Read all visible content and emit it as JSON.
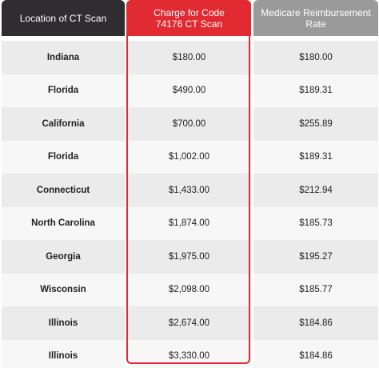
{
  "table": {
    "headers": {
      "location": "Location of CT Scan",
      "charge": "Charge for Code 74176 CT Scan",
      "medicare": "Medicare Reimbursement Rate"
    },
    "rows": [
      {
        "location": "Indiana",
        "charge": "$180.00",
        "medicare": "$180.00"
      },
      {
        "location": "Florida",
        "charge": "$490.00",
        "medicare": "$189.31"
      },
      {
        "location": "California",
        "charge": "$700.00",
        "medicare": "$255.89"
      },
      {
        "location": "Florida",
        "charge": "$1,002.00",
        "medicare": "$189.31"
      },
      {
        "location": "Connecticut",
        "charge": "$1,433.00",
        "medicare": "$212.94"
      },
      {
        "location": "North Carolina",
        "charge": "$1,874.00",
        "medicare": "$185.73"
      },
      {
        "location": "Georgia",
        "charge": "$1,975.00",
        "medicare": "$195.27"
      },
      {
        "location": "Wisconsin",
        "charge": "$2,098.00",
        "medicare": "$185.77"
      },
      {
        "location": "Illinois",
        "charge": "$2,674.00",
        "medicare": "$184.86"
      },
      {
        "location": "Illinois",
        "charge": "$3,330.00",
        "medicare": "$184.86"
      }
    ]
  },
  "colors": {
    "header_dark": "#2f2d30",
    "header_red": "#e22a33",
    "header_gray": "#9a9a9a",
    "row_shade": "#ebebeb",
    "row_plain": "#f7f7f7"
  }
}
